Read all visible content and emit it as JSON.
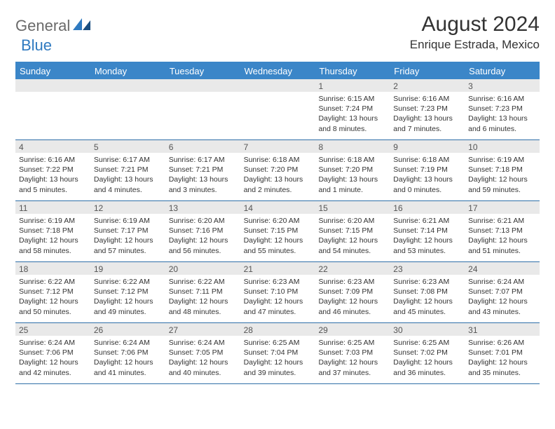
{
  "logo": {
    "general": "General",
    "blue": "Blue"
  },
  "title": "August 2024",
  "location": "Enrique Estrada, Mexico",
  "colors": {
    "header_bg": "#3b86c8",
    "header_text": "#ffffff",
    "border": "#2f6fa8",
    "daynum_bg": "#e9e9e9",
    "logo_gray": "#6a6a6a",
    "logo_blue": "#2f7ac0"
  },
  "day_headers": [
    "Sunday",
    "Monday",
    "Tuesday",
    "Wednesday",
    "Thursday",
    "Friday",
    "Saturday"
  ],
  "weeks": [
    [
      {
        "day": "",
        "sunrise": "",
        "sunset": "",
        "daylight": ""
      },
      {
        "day": "",
        "sunrise": "",
        "sunset": "",
        "daylight": ""
      },
      {
        "day": "",
        "sunrise": "",
        "sunset": "",
        "daylight": ""
      },
      {
        "day": "",
        "sunrise": "",
        "sunset": "",
        "daylight": ""
      },
      {
        "day": "1",
        "sunrise": "Sunrise: 6:15 AM",
        "sunset": "Sunset: 7:24 PM",
        "daylight": "Daylight: 13 hours and 8 minutes."
      },
      {
        "day": "2",
        "sunrise": "Sunrise: 6:16 AM",
        "sunset": "Sunset: 7:23 PM",
        "daylight": "Daylight: 13 hours and 7 minutes."
      },
      {
        "day": "3",
        "sunrise": "Sunrise: 6:16 AM",
        "sunset": "Sunset: 7:23 PM",
        "daylight": "Daylight: 13 hours and 6 minutes."
      }
    ],
    [
      {
        "day": "4",
        "sunrise": "Sunrise: 6:16 AM",
        "sunset": "Sunset: 7:22 PM",
        "daylight": "Daylight: 13 hours and 5 minutes."
      },
      {
        "day": "5",
        "sunrise": "Sunrise: 6:17 AM",
        "sunset": "Sunset: 7:21 PM",
        "daylight": "Daylight: 13 hours and 4 minutes."
      },
      {
        "day": "6",
        "sunrise": "Sunrise: 6:17 AM",
        "sunset": "Sunset: 7:21 PM",
        "daylight": "Daylight: 13 hours and 3 minutes."
      },
      {
        "day": "7",
        "sunrise": "Sunrise: 6:18 AM",
        "sunset": "Sunset: 7:20 PM",
        "daylight": "Daylight: 13 hours and 2 minutes."
      },
      {
        "day": "8",
        "sunrise": "Sunrise: 6:18 AM",
        "sunset": "Sunset: 7:20 PM",
        "daylight": "Daylight: 13 hours and 1 minute."
      },
      {
        "day": "9",
        "sunrise": "Sunrise: 6:18 AM",
        "sunset": "Sunset: 7:19 PM",
        "daylight": "Daylight: 13 hours and 0 minutes."
      },
      {
        "day": "10",
        "sunrise": "Sunrise: 6:19 AM",
        "sunset": "Sunset: 7:18 PM",
        "daylight": "Daylight: 12 hours and 59 minutes."
      }
    ],
    [
      {
        "day": "11",
        "sunrise": "Sunrise: 6:19 AM",
        "sunset": "Sunset: 7:18 PM",
        "daylight": "Daylight: 12 hours and 58 minutes."
      },
      {
        "day": "12",
        "sunrise": "Sunrise: 6:19 AM",
        "sunset": "Sunset: 7:17 PM",
        "daylight": "Daylight: 12 hours and 57 minutes."
      },
      {
        "day": "13",
        "sunrise": "Sunrise: 6:20 AM",
        "sunset": "Sunset: 7:16 PM",
        "daylight": "Daylight: 12 hours and 56 minutes."
      },
      {
        "day": "14",
        "sunrise": "Sunrise: 6:20 AM",
        "sunset": "Sunset: 7:15 PM",
        "daylight": "Daylight: 12 hours and 55 minutes."
      },
      {
        "day": "15",
        "sunrise": "Sunrise: 6:20 AM",
        "sunset": "Sunset: 7:15 PM",
        "daylight": "Daylight: 12 hours and 54 minutes."
      },
      {
        "day": "16",
        "sunrise": "Sunrise: 6:21 AM",
        "sunset": "Sunset: 7:14 PM",
        "daylight": "Daylight: 12 hours and 53 minutes."
      },
      {
        "day": "17",
        "sunrise": "Sunrise: 6:21 AM",
        "sunset": "Sunset: 7:13 PM",
        "daylight": "Daylight: 12 hours and 51 minutes."
      }
    ],
    [
      {
        "day": "18",
        "sunrise": "Sunrise: 6:22 AM",
        "sunset": "Sunset: 7:12 PM",
        "daylight": "Daylight: 12 hours and 50 minutes."
      },
      {
        "day": "19",
        "sunrise": "Sunrise: 6:22 AM",
        "sunset": "Sunset: 7:12 PM",
        "daylight": "Daylight: 12 hours and 49 minutes."
      },
      {
        "day": "20",
        "sunrise": "Sunrise: 6:22 AM",
        "sunset": "Sunset: 7:11 PM",
        "daylight": "Daylight: 12 hours and 48 minutes."
      },
      {
        "day": "21",
        "sunrise": "Sunrise: 6:23 AM",
        "sunset": "Sunset: 7:10 PM",
        "daylight": "Daylight: 12 hours and 47 minutes."
      },
      {
        "day": "22",
        "sunrise": "Sunrise: 6:23 AM",
        "sunset": "Sunset: 7:09 PM",
        "daylight": "Daylight: 12 hours and 46 minutes."
      },
      {
        "day": "23",
        "sunrise": "Sunrise: 6:23 AM",
        "sunset": "Sunset: 7:08 PM",
        "daylight": "Daylight: 12 hours and 45 minutes."
      },
      {
        "day": "24",
        "sunrise": "Sunrise: 6:24 AM",
        "sunset": "Sunset: 7:07 PM",
        "daylight": "Daylight: 12 hours and 43 minutes."
      }
    ],
    [
      {
        "day": "25",
        "sunrise": "Sunrise: 6:24 AM",
        "sunset": "Sunset: 7:06 PM",
        "daylight": "Daylight: 12 hours and 42 minutes."
      },
      {
        "day": "26",
        "sunrise": "Sunrise: 6:24 AM",
        "sunset": "Sunset: 7:06 PM",
        "daylight": "Daylight: 12 hours and 41 minutes."
      },
      {
        "day": "27",
        "sunrise": "Sunrise: 6:24 AM",
        "sunset": "Sunset: 7:05 PM",
        "daylight": "Daylight: 12 hours and 40 minutes."
      },
      {
        "day": "28",
        "sunrise": "Sunrise: 6:25 AM",
        "sunset": "Sunset: 7:04 PM",
        "daylight": "Daylight: 12 hours and 39 minutes."
      },
      {
        "day": "29",
        "sunrise": "Sunrise: 6:25 AM",
        "sunset": "Sunset: 7:03 PM",
        "daylight": "Daylight: 12 hours and 37 minutes."
      },
      {
        "day": "30",
        "sunrise": "Sunrise: 6:25 AM",
        "sunset": "Sunset: 7:02 PM",
        "daylight": "Daylight: 12 hours and 36 minutes."
      },
      {
        "day": "31",
        "sunrise": "Sunrise: 6:26 AM",
        "sunset": "Sunset: 7:01 PM",
        "daylight": "Daylight: 12 hours and 35 minutes."
      }
    ]
  ]
}
